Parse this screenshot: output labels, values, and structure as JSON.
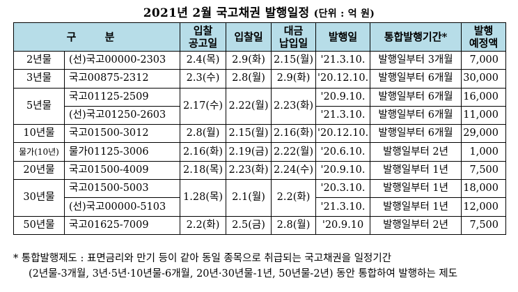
{
  "title": {
    "main": "2021년 2월 국고채권 발행일정",
    "unit": "(단위 : 억 원)"
  },
  "headers": {
    "gubun": "구 분",
    "gongo": [
      "입찰",
      "공고일"
    ],
    "ipchal": "입찰일",
    "daegeum": [
      "대금",
      "납입일"
    ],
    "balhaeng": "발행일",
    "period": "통합발행기간*",
    "amount": [
      "발행",
      "예정액"
    ]
  },
  "rows": [
    {
      "maturity": "2년물",
      "issue": "(선)국고00000-2303",
      "gongo": "2.4(목)",
      "ipchal": "2.9(화)",
      "daegeum": "2.15(월)",
      "balhaeng": "'21.3.10.",
      "period": "발행일부터 3개월",
      "amount": "7,000"
    },
    {
      "maturity": "3년물",
      "issue": "국고00875-2312",
      "gongo": "2.3(수)",
      "ipchal": "2.8(월)",
      "daegeum": "2.9(화)",
      "balhaeng": "'20.12.10.",
      "period": "발행일부터 6개월",
      "amount": "30,000"
    },
    {
      "maturity": "5년물",
      "issue": "국고01125-2509",
      "gongo": "2.17(수)",
      "ipchal": "2.22(월)",
      "daegeum": "2.23(화)",
      "balhaeng": "'20.9.10.",
      "period": "발행일부터 6개월",
      "amount": "16,000"
    },
    {
      "maturity": "",
      "issue": "(선)국고01250-2603",
      "gongo": "",
      "ipchal": "",
      "daegeum": "",
      "balhaeng": "'21.3.10.",
      "period": "발행일부터 6개월",
      "amount": "11,000"
    },
    {
      "maturity": "10년물",
      "issue": "국고01500-3012",
      "gongo": "2.8(월)",
      "ipchal": "2.15(월)",
      "daegeum": "2.16(화)",
      "balhaeng": "'20.12.10.",
      "period": "발행일부터 6개월",
      "amount": "29,000"
    },
    {
      "maturity": "물가(10년)",
      "issue": "물가01125-3006",
      "gongo": "2.16(화)",
      "ipchal": "2.19(금)",
      "daegeum": "2.22(월)",
      "balhaeng": "'20.6.10.",
      "period": "발행일부터 2년",
      "amount": "1,000"
    },
    {
      "maturity": "20년물",
      "issue": "국고01500-4009",
      "gongo": "2.18(목)",
      "ipchal": "2.23(화)",
      "daegeum": "2.24(수)",
      "balhaeng": "'20.9.10.",
      "period": "발행일부터 1년",
      "amount": "7,500"
    },
    {
      "maturity": "30년물",
      "issue": "국고01500-5003",
      "gongo": "1.28(목)",
      "ipchal": "2.1(월)",
      "daegeum": "2.2(화)",
      "balhaeng": "'20.3.10.",
      "period": "발행일부터 1년",
      "amount": "18,000"
    },
    {
      "maturity": "",
      "issue": "(선)국고00000-5103",
      "gongo": "",
      "ipchal": "",
      "daegeum": "",
      "balhaeng": "'21.3.10.",
      "period": "발행일부터 1년",
      "amount": "12,000"
    },
    {
      "maturity": "50년물",
      "issue": "국고01625-7009",
      "gongo": "2.2(화)",
      "ipchal": "2.5(금)",
      "daegeum": "2.8(월)",
      "balhaeng": "'20.9.10",
      "period": "발행일부터 2년",
      "amount": "7,500"
    }
  ],
  "footnote": {
    "line1": "* 통합발행제도 : 표면금리와 만기 등이 같아 동일 종목으로 취급되는 국고채권을 일정기간",
    "line2": "(2년물-3개월, 3년·5년·10년물-6개월, 20년·30년물-1년, 50년물-2년) 동안 통합하여 발행하는 제도"
  },
  "colors": {
    "header_bg": "#b7dde8"
  }
}
